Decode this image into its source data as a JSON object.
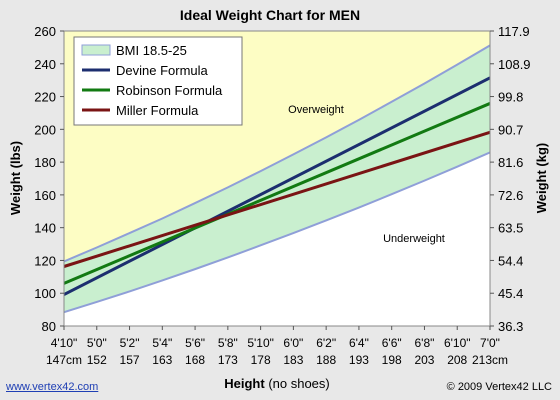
{
  "chart_data": {
    "type": "line",
    "title": "Ideal Weight Chart for MEN",
    "xlabel_main": "Height",
    "xlabel_sub": "(no shoes)",
    "ylabel_left": "Weight (lbs)",
    "ylabel_right": "Weight (kg)",
    "x_inches": [
      58,
      84
    ],
    "x_ticks_ft": [
      "4'10\"",
      "5'0\"",
      "5'2\"",
      "5'4\"",
      "5'6\"",
      "5'8\"",
      "5'10\"",
      "6'0\"",
      "6'2\"",
      "6'4\"",
      "6'6\"",
      "6'8\"",
      "6'10\"",
      "7'0\""
    ],
    "x_ticks_cm": [
      "147cm",
      "152",
      "157",
      "163",
      "168",
      "173",
      "178",
      "183",
      "188",
      "193",
      "198",
      "203",
      "208",
      "213cm"
    ],
    "y_ticks_left": [
      "80",
      "100",
      "120",
      "140",
      "160",
      "180",
      "200",
      "220",
      "240",
      "260"
    ],
    "y_ticks_right": [
      "36.3",
      "45.4",
      "54.4",
      "63.5",
      "72.6",
      "81.6",
      "90.7",
      "99.8",
      "108.9",
      "117.9"
    ],
    "ylim_lbs": [
      80,
      260
    ],
    "region_labels": {
      "overweight": "Overweight",
      "underweight": "Underweight"
    },
    "series": [
      {
        "name": "BMI 18.5-25",
        "kind": "band",
        "color": "#c9efcf",
        "edge_color": "#8f9fd8",
        "x": [
          58,
          60,
          62,
          64,
          66,
          68,
          70,
          72,
          74,
          76,
          78,
          80,
          82,
          84
        ],
        "lower": [
          88.4,
          94.7,
          101.1,
          107.8,
          114.7,
          121.8,
          129.2,
          136.7,
          144.4,
          152.3,
          160.4,
          168.7,
          177.2,
          185.9
        ],
        "upper": [
          119.4,
          127.9,
          136.7,
          145.6,
          155.0,
          164.6,
          174.5,
          184.7,
          195.1,
          205.8,
          216.8,
          228.0,
          239.5,
          251.2
        ]
      },
      {
        "name": "Devine Formula",
        "kind": "line",
        "color": "#1c2e6f",
        "x": [
          58,
          84
        ],
        "y": [
          99.2,
          231.4
        ]
      },
      {
        "name": "Robinson Formula",
        "kind": "line",
        "color": "#127a12",
        "x": [
          58,
          84
        ],
        "y": [
          106.0,
          215.8
        ]
      },
      {
        "name": "Miller Formula",
        "kind": "line",
        "color": "#7a1414",
        "x": [
          58,
          84
        ],
        "y": [
          116.3,
          198.2
        ]
      }
    ],
    "legend_position": "top-left",
    "grid": false
  },
  "footer": {
    "link": "www.vertex42.com",
    "copyright": "© 2009 Vertex42 LLC"
  }
}
